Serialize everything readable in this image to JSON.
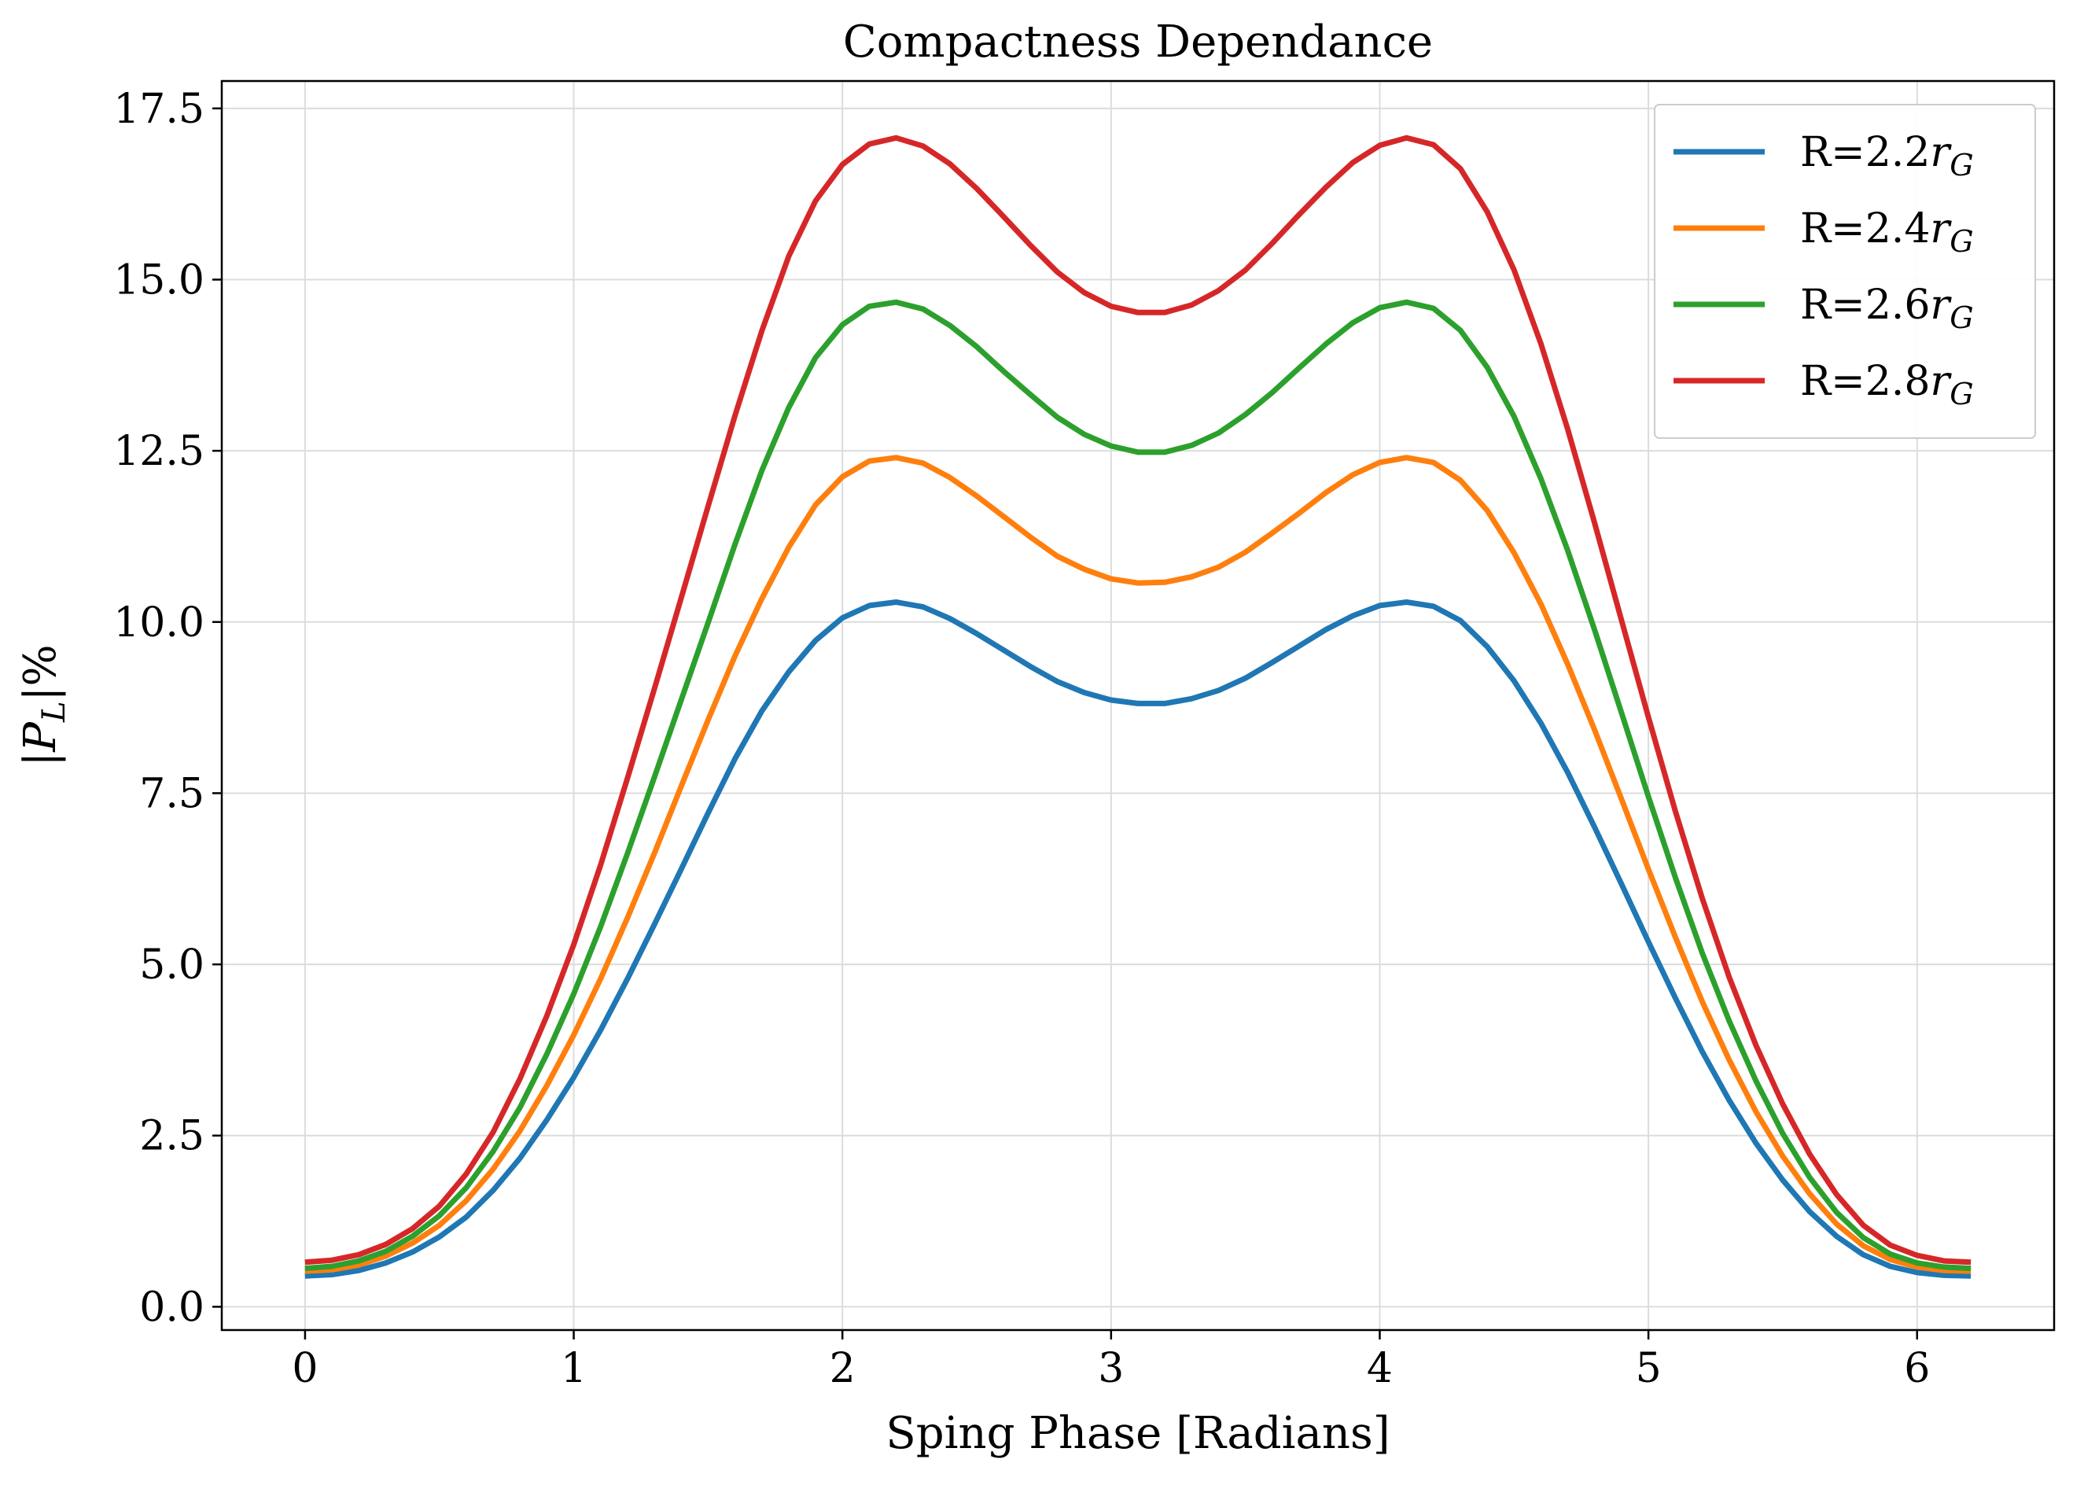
{
  "chart_data": {
    "type": "line",
    "title": "Compactness Dependance",
    "xlabel": "Sping Phase [Radians]",
    "ylabel": "|P_L|%",
    "xlim": [
      -0.31,
      6.51
    ],
    "ylim": [
      -0.34,
      17.9
    ],
    "x_ticks": [
      0,
      1,
      2,
      3,
      4,
      5,
      6
    ],
    "x_tick_labels": [
      "0",
      "1",
      "2",
      "3",
      "4",
      "5",
      "6"
    ],
    "y_ticks": [
      0,
      2.5,
      5,
      7.5,
      10,
      12.5,
      15,
      17.5
    ],
    "y_tick_labels": [
      "0.0",
      "2.5",
      "5.0",
      "7.5",
      "10.0",
      "12.5",
      "15.0",
      "17.5"
    ],
    "grid": true,
    "legend_position": "top-right",
    "x": [
      0.0,
      0.1,
      0.2,
      0.3,
      0.4,
      0.5,
      0.6,
      0.7,
      0.8,
      0.9,
      1.0,
      1.1,
      1.2,
      1.3,
      1.4,
      1.5,
      1.6,
      1.7,
      1.8,
      1.9,
      2.0,
      2.1,
      2.2,
      2.3,
      2.4,
      2.5,
      2.6,
      2.7,
      2.8,
      2.9,
      3.0,
      3.1,
      3.2,
      3.3,
      3.4,
      3.5,
      3.6,
      3.7,
      3.8,
      3.9,
      4.0,
      4.1,
      4.2,
      4.3,
      4.4,
      4.5,
      4.6,
      4.7,
      4.8,
      4.9,
      5.0,
      5.1,
      5.2,
      5.3,
      5.4,
      5.5,
      5.6,
      5.7,
      5.8,
      5.9,
      6.0,
      6.1,
      6.2
    ],
    "series": [
      {
        "name": "R=2.2r_G",
        "color": "#1f77b4",
        "values": [
          0.45,
          0.47,
          0.53,
          0.64,
          0.8,
          1.02,
          1.31,
          1.7,
          2.17,
          2.73,
          3.35,
          4.04,
          4.79,
          5.58,
          6.39,
          7.21,
          8.0,
          8.7,
          9.27,
          9.73,
          10.06,
          10.24,
          10.29,
          10.22,
          10.05,
          9.83,
          9.59,
          9.35,
          9.13,
          8.97,
          8.86,
          8.81,
          8.81,
          8.88,
          9.0,
          9.18,
          9.41,
          9.65,
          9.89,
          10.09,
          10.24,
          10.29,
          10.23,
          10.02,
          9.64,
          9.14,
          8.52,
          7.8,
          7.0,
          6.17,
          5.33,
          4.51,
          3.73,
          3.02,
          2.39,
          1.85,
          1.39,
          1.03,
          0.76,
          0.59,
          0.5,
          0.46,
          0.45
        ]
      },
      {
        "name": "R=2.4r_G",
        "color": "#ff7f0e",
        "values": [
          0.52,
          0.54,
          0.61,
          0.74,
          0.93,
          1.19,
          1.55,
          2.01,
          2.57,
          3.23,
          3.97,
          4.79,
          5.68,
          6.62,
          7.6,
          8.57,
          9.5,
          10.34,
          11.09,
          11.71,
          12.12,
          12.35,
          12.4,
          12.32,
          12.11,
          11.84,
          11.54,
          11.24,
          10.96,
          10.77,
          10.63,
          10.57,
          10.58,
          10.66,
          10.8,
          11.02,
          11.3,
          11.59,
          11.89,
          12.15,
          12.33,
          12.4,
          12.33,
          12.07,
          11.63,
          11.01,
          10.26,
          9.38,
          8.42,
          7.41,
          6.39,
          5.4,
          4.46,
          3.61,
          2.85,
          2.2,
          1.65,
          1.21,
          0.89,
          0.69,
          0.58,
          0.53,
          0.52
        ]
      },
      {
        "name": "R=2.6r_G",
        "color": "#2ca02c",
        "values": [
          0.56,
          0.59,
          0.67,
          0.81,
          1.03,
          1.33,
          1.74,
          2.27,
          2.91,
          3.69,
          4.57,
          5.55,
          6.62,
          7.73,
          8.86,
          9.99,
          11.13,
          12.21,
          13.13,
          13.86,
          14.34,
          14.61,
          14.67,
          14.57,
          14.33,
          14.02,
          13.66,
          13.32,
          12.99,
          12.74,
          12.57,
          12.48,
          12.48,
          12.58,
          12.76,
          13.03,
          13.35,
          13.71,
          14.06,
          14.37,
          14.59,
          14.67,
          14.58,
          14.26,
          13.72,
          13.0,
          12.09,
          11.04,
          9.88,
          8.67,
          7.45,
          6.27,
          5.17,
          4.18,
          3.3,
          2.53,
          1.89,
          1.38,
          1.01,
          0.77,
          0.64,
          0.58,
          0.56
        ]
      },
      {
        "name": "R=2.8r_G",
        "color": "#d62728",
        "values": [
          0.65,
          0.68,
          0.76,
          0.91,
          1.14,
          1.47,
          1.94,
          2.55,
          3.33,
          4.25,
          5.29,
          6.45,
          7.72,
          9.02,
          10.35,
          11.69,
          13.01,
          14.25,
          15.34,
          16.15,
          16.68,
          16.98,
          17.07,
          16.95,
          16.69,
          16.33,
          15.92,
          15.5,
          15.11,
          14.81,
          14.61,
          14.52,
          14.52,
          14.63,
          14.84,
          15.14,
          15.53,
          15.95,
          16.35,
          16.71,
          16.96,
          17.07,
          16.97,
          16.62,
          15.99,
          15.14,
          14.06,
          12.81,
          11.44,
          10.02,
          8.61,
          7.24,
          5.97,
          4.82,
          3.82,
          2.96,
          2.23,
          1.64,
          1.19,
          0.9,
          0.75,
          0.67,
          0.65
        ]
      }
    ]
  }
}
